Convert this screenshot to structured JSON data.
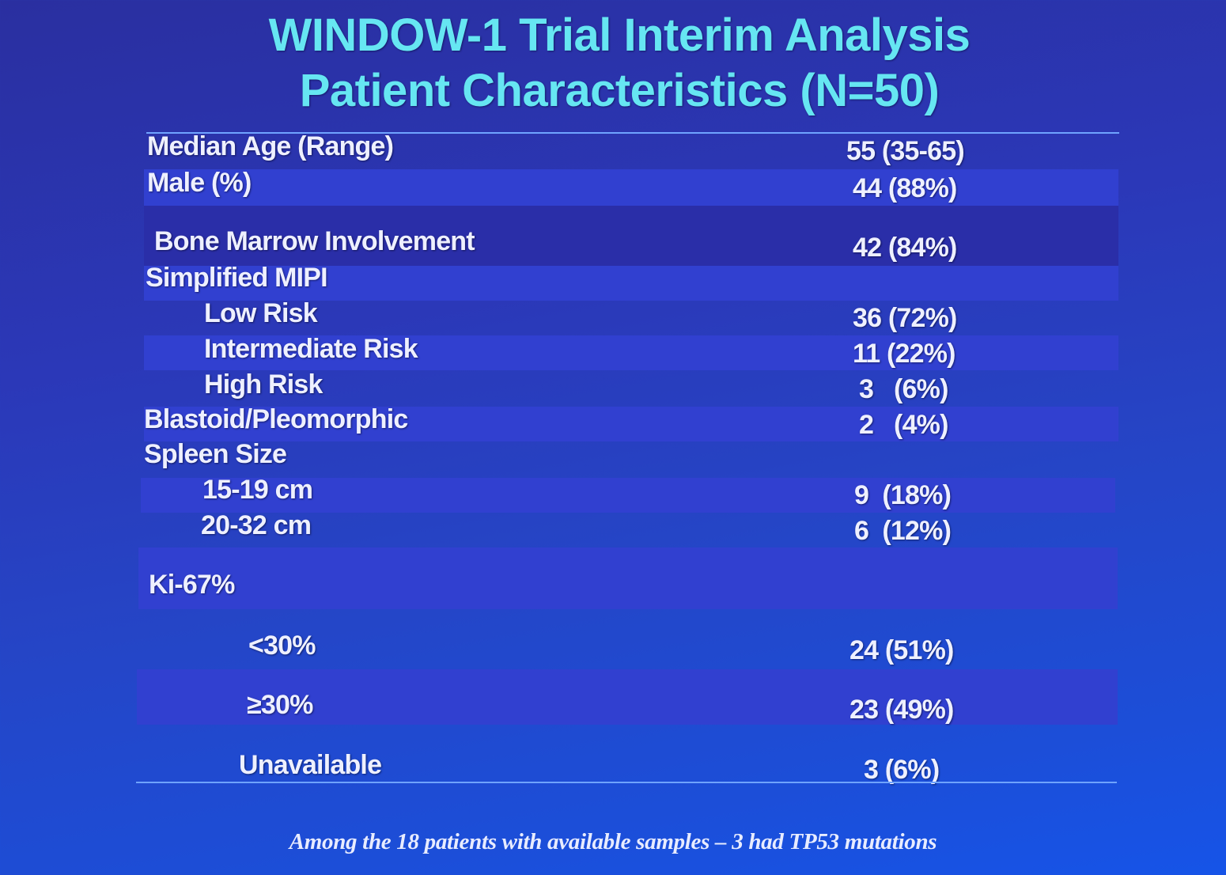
{
  "title": {
    "line1": "WINDOW-1 Trial Interim Analysis",
    "line2": "Patient Characteristics (N=50)"
  },
  "table": {
    "rows": [
      {
        "label": "Median Age (Range)",
        "value": "55 (35-65)"
      },
      {
        "label": "Male (%)",
        "value": "44 (88%)"
      },
      {
        "label": "Bone Marrow Involvement",
        "value": "42 (84%)"
      },
      {
        "label": "Simplified MIPI",
        "value": ""
      },
      {
        "label": "Low Risk",
        "value": "36 (72%)"
      },
      {
        "label": "Intermediate Risk",
        "value": "11 (22%)"
      },
      {
        "label": "High Risk",
        "value": "3   (6%)"
      },
      {
        "label": "Blastoid/Pleomorphic",
        "value": "2   (4%)"
      },
      {
        "label": "Spleen Size",
        "value": ""
      },
      {
        "label": "15-19 cm",
        "value": "9  (18%)"
      },
      {
        "label": "20-32 cm",
        "value": "6  (12%)"
      },
      {
        "label": "Ki-67%",
        "value": ""
      },
      {
        "label": "<30%",
        "value": "24 (51%)"
      },
      {
        "label": "≥30%",
        "value": "23 (49%)"
      },
      {
        "label": "Unavailable",
        "value": "3 (6%)"
      }
    ]
  },
  "footnote": "Among the 18 patients with available samples – 3 had TP53 mutations"
}
